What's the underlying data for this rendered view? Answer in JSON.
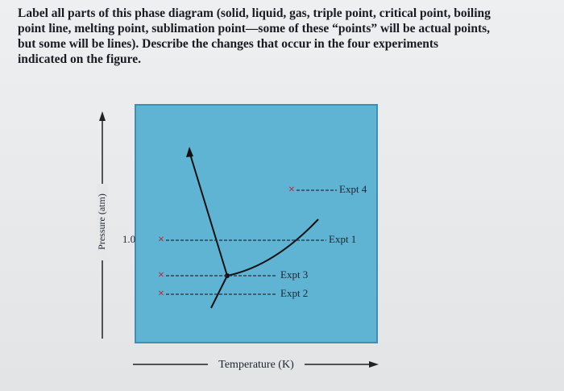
{
  "question": {
    "lines": [
      "Label all parts of this phase diagram (solid, liquid, gas, triple point, critical point, boiling",
      "point line, melting point, sublimation point—some of these “points” will be actual points,",
      "but some will be lines). Describe the changes that occur in the four experiments",
      "indicated on the figure."
    ]
  },
  "diagram": {
    "y_axis_label": "Pressure (atm)",
    "x_axis_label": "Temperature (K)",
    "y_tick": "1.0",
    "experiments": [
      "Expt 4",
      "Expt 1",
      "Expt 3",
      "Expt 2"
    ]
  }
}
